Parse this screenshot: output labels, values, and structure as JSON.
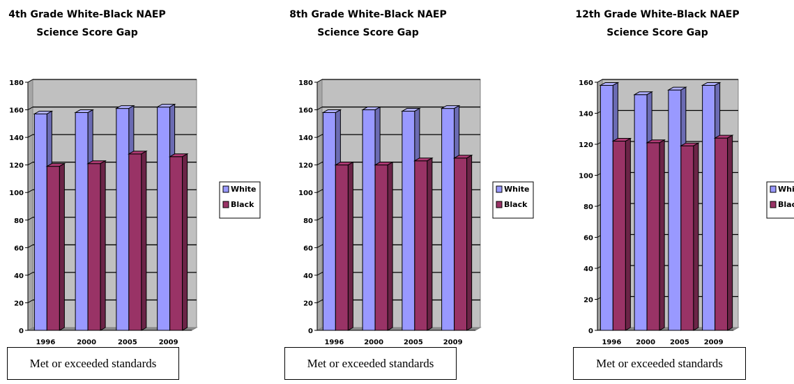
{
  "colors": {
    "white_series": "#9999FF",
    "black_series": "#993366",
    "plot_background": "#C0C0C0"
  },
  "chart_data": [
    {
      "type": "bar",
      "title": "4th Grade White-Black NAEP\nScience Score Gap",
      "categories": [
        "1996",
        "2000",
        "2005",
        "2009"
      ],
      "series": [
        {
          "name": "White",
          "values": [
            157,
            158,
            161,
            162
          ]
        },
        {
          "name": "Black",
          "values": [
            119,
            121,
            128,
            126
          ]
        }
      ],
      "ylim": [
        0,
        180
      ],
      "yticks": [
        "0",
        "20",
        "40",
        "60",
        "80",
        "100",
        "120",
        "140",
        "160",
        "180"
      ],
      "grid": true,
      "legend": "right",
      "style": "3d",
      "caption": "Met or exceeded standards"
    },
    {
      "type": "bar",
      "title": "8th Grade White-Black NAEP\nScience Score Gap",
      "categories": [
        "1996",
        "2000",
        "2005",
        "2009"
      ],
      "series": [
        {
          "name": "White",
          "values": [
            158,
            160,
            159,
            161
          ]
        },
        {
          "name": "Black",
          "values": [
            120,
            120,
            123,
            125
          ]
        }
      ],
      "ylim": [
        0,
        180
      ],
      "yticks": [
        "0",
        "20",
        "40",
        "60",
        "80",
        "100",
        "120",
        "140",
        "160",
        "180"
      ],
      "grid": true,
      "legend": "right",
      "style": "3d",
      "caption": "Met or exceeded standards"
    },
    {
      "type": "bar",
      "title": "12th Grade White-Black NAEP\nScience Score Gap",
      "categories": [
        "1996",
        "2000",
        "2005",
        "2009"
      ],
      "series": [
        {
          "name": "White",
          "values": [
            158,
            152,
            155,
            158
          ]
        },
        {
          "name": "Black",
          "values": [
            122,
            121,
            119,
            124
          ]
        }
      ],
      "ylim": [
        0,
        160
      ],
      "yticks": [
        "0",
        "20",
        "40",
        "60",
        "80",
        "100",
        "120",
        "140",
        "160"
      ],
      "grid": true,
      "legend": "right",
      "style": "3d",
      "caption": "Met or exceeded standards"
    }
  ]
}
